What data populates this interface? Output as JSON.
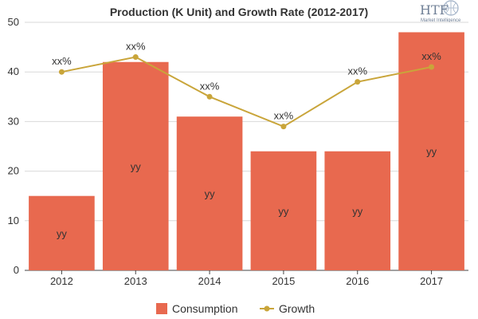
{
  "chart_data": {
    "type": "bar",
    "title": "Production (K Unit) and Growth Rate (2012-2017)",
    "categories": [
      "2012",
      "2013",
      "2014",
      "2015",
      "2016",
      "2017"
    ],
    "ylim": [
      0,
      50
    ],
    "yticks": [
      0,
      10,
      20,
      30,
      40,
      50
    ],
    "grid": true,
    "legend_position": "bottom",
    "series": [
      {
        "name": "Consumption",
        "type": "bar",
        "color": "#e8694f",
        "values": [
          15,
          42,
          31,
          24,
          24,
          48
        ],
        "data_labels": [
          "yy",
          "yy",
          "yy",
          "yy",
          "yy",
          "yy"
        ]
      },
      {
        "name": "Growth",
        "type": "line",
        "color": "#c9a53a",
        "values": [
          40,
          43,
          35,
          29,
          38,
          41
        ],
        "data_labels": [
          "xx%",
          "xx%",
          "xx%",
          "xx%",
          "xx%",
          "xx%"
        ]
      }
    ]
  },
  "logo": {
    "text": "HTF",
    "subtitle": "Market Intelligence"
  }
}
